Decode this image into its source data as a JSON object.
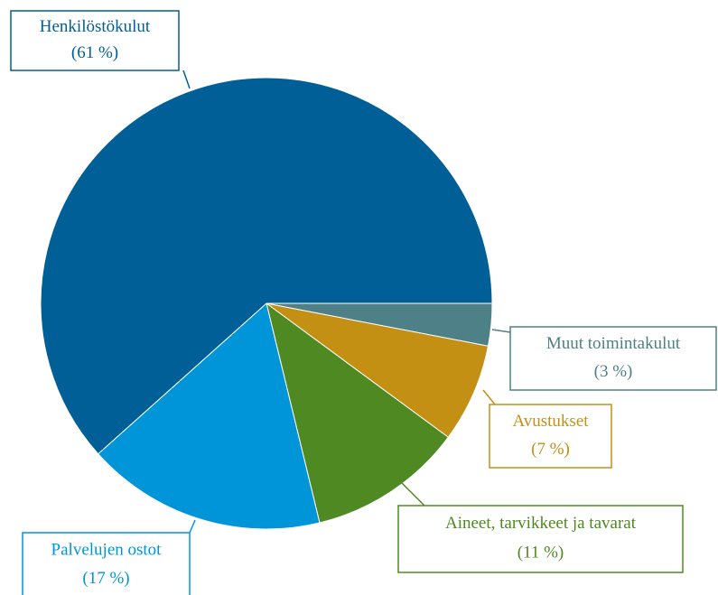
{
  "chart_data": {
    "type": "pie",
    "categories": [
      "Henkilöstökulut",
      "Palvelujen ostot",
      "Aineet, tarvikkeet ja tavarat",
      "Avustukset",
      "Muut toimintakulut"
    ],
    "values": [
      61,
      17,
      11,
      7,
      3
    ],
    "value_labels": [
      "(61 %)",
      "(17 %)",
      "(11 %)",
      "(7 %)",
      "(3 %)"
    ],
    "colors": [
      "#005f96",
      "#0095d9",
      "#4e8a21",
      "#c49014",
      "#4e8088"
    ]
  }
}
